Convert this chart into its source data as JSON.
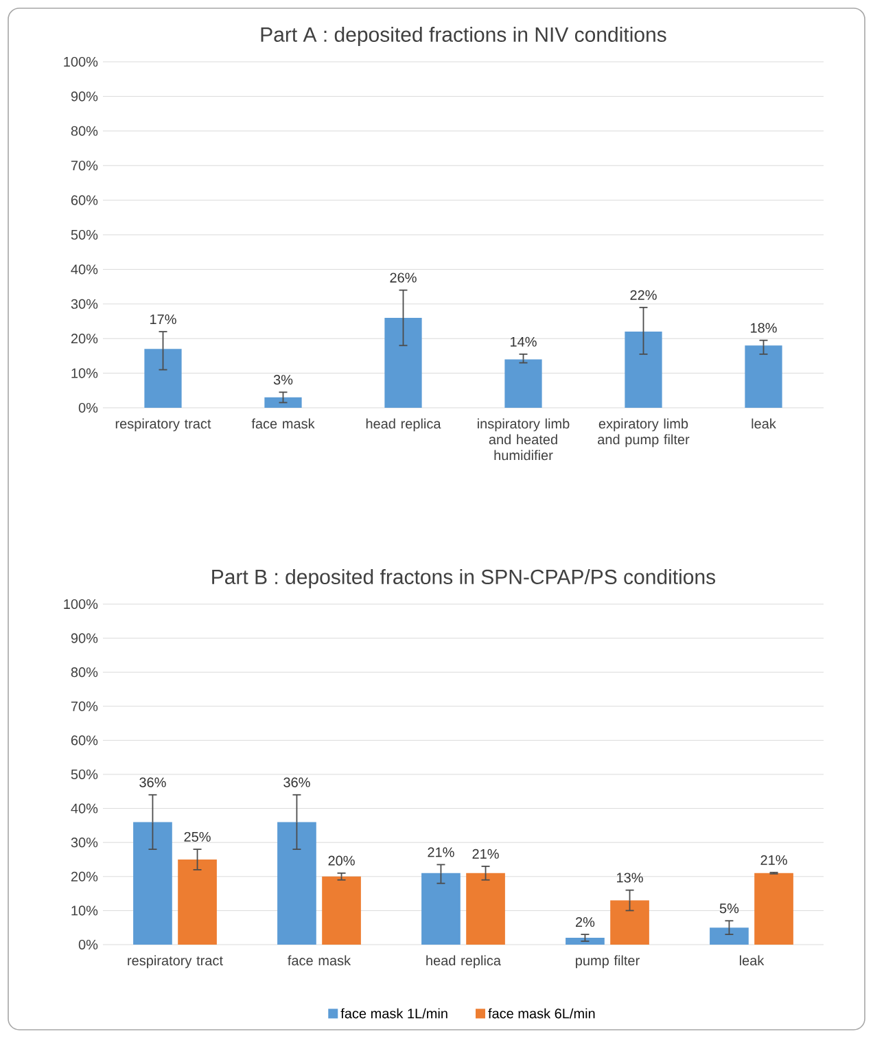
{
  "chart_data": [
    {
      "type": "bar",
      "title": "Part A : deposited fractions in NIV conditions",
      "categories": [
        "respiratory tract",
        "face mask",
        "head replica",
        "inspiratory limb and heated humidifier",
        "expiratory limb and pump filter",
        "leak"
      ],
      "values": [
        17,
        3,
        26,
        14,
        22,
        18
      ],
      "color": "#5b9bd5",
      "errors": [
        [
          11,
          22
        ],
        [
          1.5,
          4.5
        ],
        [
          18,
          34
        ],
        [
          13,
          15.5
        ],
        [
          15.5,
          29
        ],
        [
          15.5,
          19.5
        ]
      ],
      "value_labels": [
        "17%",
        "3%",
        "26%",
        "14%",
        "22%",
        "18%"
      ],
      "ylim": [
        0,
        100
      ],
      "yticks": [
        {
          "value": 0,
          "label": "0%"
        },
        {
          "value": 10,
          "label": "10%"
        },
        {
          "value": 20,
          "label": "20%"
        },
        {
          "value": 30,
          "label": "30%"
        },
        {
          "value": 40,
          "label": "40%"
        },
        {
          "value": 50,
          "label": "50%"
        },
        {
          "value": 60,
          "label": "60%"
        },
        {
          "value": 70,
          "label": "70%"
        },
        {
          "value": 80,
          "label": "80%"
        },
        {
          "value": 90,
          "label": "90%"
        },
        {
          "value": 100,
          "label": "100%"
        }
      ],
      "grid": "y",
      "legend": false
    },
    {
      "type": "bar",
      "title": "Part B : deposited fractons in SPN-CPAP/PS conditions",
      "categories": [
        "respiratory tract",
        "face mask",
        "head replica",
        "pump filter",
        "leak"
      ],
      "series": [
        {
          "name": "face mask 1L/min",
          "color": "#5b9bd5",
          "values": [
            36,
            36,
            21,
            2,
            5
          ],
          "errors": [
            [
              28,
              44
            ],
            [
              28,
              44
            ],
            [
              18,
              23.5
            ],
            [
              1,
              3
            ],
            [
              3,
              7
            ]
          ],
          "value_labels": [
            "36%",
            "36%",
            "21%",
            "2%",
            "5%"
          ]
        },
        {
          "name": "face mask 6L/min",
          "color": "#ed7d31",
          "values": [
            25,
            20,
            21,
            13,
            21
          ],
          "errors": [
            [
              22,
              28
            ],
            [
              19,
              21
            ],
            [
              19,
              23
            ],
            [
              10,
              16
            ],
            [
              20.8,
              21.2
            ]
          ],
          "value_labels": [
            "25%",
            "20%",
            "21%",
            "13%",
            "21%"
          ]
        }
      ],
      "ylim": [
        0,
        100
      ],
      "yticks": [
        {
          "value": 0,
          "label": "0%"
        },
        {
          "value": 10,
          "label": "10%"
        },
        {
          "value": 20,
          "label": "20%"
        },
        {
          "value": 30,
          "label": "30%"
        },
        {
          "value": 40,
          "label": "40%"
        },
        {
          "value": 50,
          "label": "50%"
        },
        {
          "value": 60,
          "label": "60%"
        },
        {
          "value": 70,
          "label": "70%"
        },
        {
          "value": 80,
          "label": "80%"
        },
        {
          "value": 90,
          "label": "90%"
        },
        {
          "value": 100,
          "label": "100%"
        }
      ],
      "grid": "y",
      "legend": "bottom"
    }
  ]
}
